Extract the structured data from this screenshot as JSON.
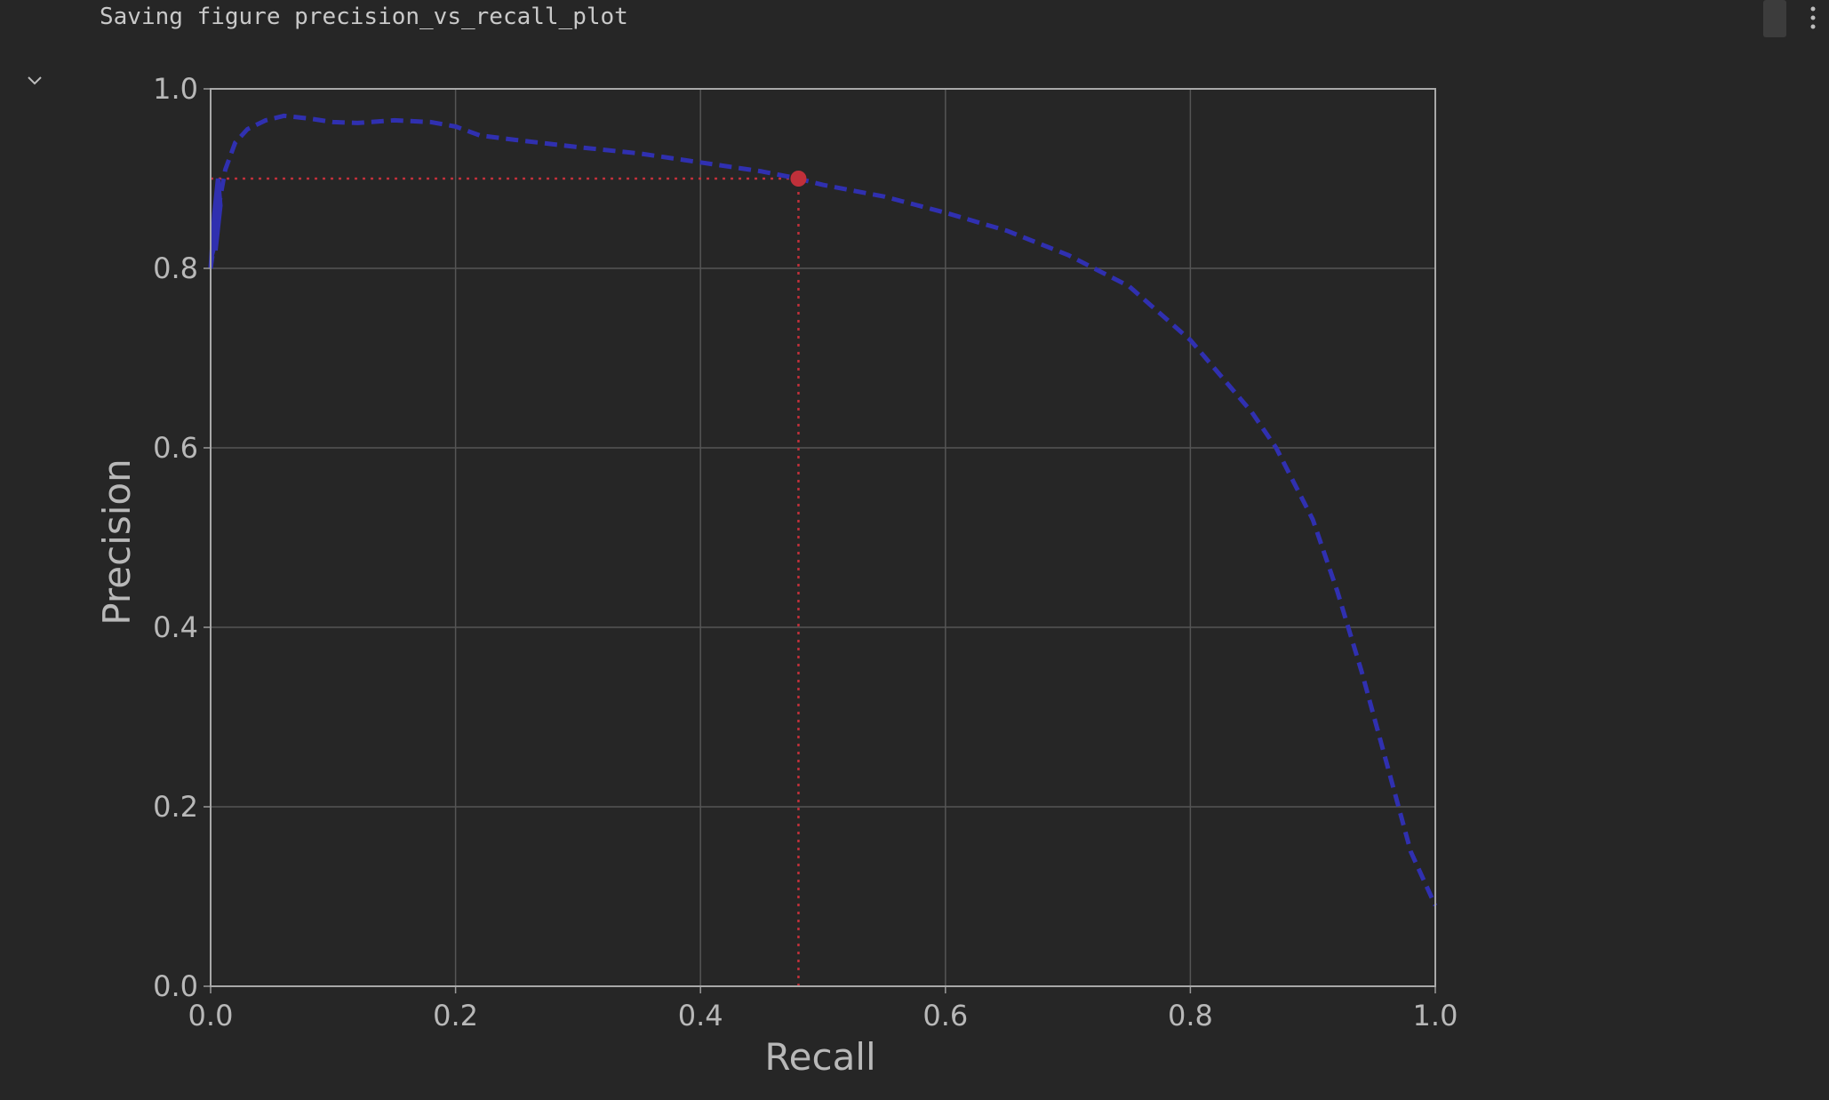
{
  "output": {
    "text": "Saving figure precision_vs_recall_plot"
  },
  "icons": {
    "collapse": "chevron-down-icon",
    "menu": "more-vertical-icon"
  },
  "colors": {
    "background": "#262626",
    "curve": "#3030b0",
    "marker": "#c0303a",
    "grid": "#555555",
    "axis_text": "#b8b8b8"
  },
  "chart_data": {
    "type": "line",
    "title": "",
    "xlabel": "Recall",
    "ylabel": "Precision",
    "xlim": [
      0.0,
      1.0
    ],
    "ylim": [
      0.0,
      1.0
    ],
    "grid": true,
    "xticks": [
      "0.0",
      "0.2",
      "0.4",
      "0.6",
      "0.8",
      "1.0"
    ],
    "yticks": [
      "0.0",
      "0.2",
      "0.4",
      "0.6",
      "0.8",
      "1.0"
    ],
    "series": [
      {
        "style": "dashed",
        "color": "#3030b0",
        "x": [
          0.0,
          0.002,
          0.005,
          0.008,
          0.012,
          0.02,
          0.03,
          0.045,
          0.06,
          0.08,
          0.1,
          0.12,
          0.15,
          0.18,
          0.2,
          0.22,
          0.25,
          0.3,
          0.35,
          0.4,
          0.45,
          0.48,
          0.5,
          0.55,
          0.6,
          0.65,
          0.7,
          0.75,
          0.8,
          0.85,
          0.87,
          0.9,
          0.92,
          0.94,
          0.96,
          0.98,
          1.0
        ],
        "y": [
          0.8,
          0.82,
          0.85,
          0.88,
          0.91,
          0.94,
          0.955,
          0.965,
          0.97,
          0.967,
          0.963,
          0.962,
          0.965,
          0.963,
          0.958,
          0.948,
          0.943,
          0.935,
          0.928,
          0.918,
          0.908,
          0.9,
          0.893,
          0.88,
          0.862,
          0.842,
          0.815,
          0.78,
          0.72,
          0.64,
          0.6,
          0.52,
          0.44,
          0.35,
          0.25,
          0.15,
          0.09
        ]
      }
    ],
    "threshold_point": {
      "x": 0.48,
      "y": 0.9,
      "color": "#c0303a"
    },
    "reference_lines": [
      {
        "orientation": "horizontal",
        "y": 0.9,
        "x_from": 0.0,
        "x_to": 0.48,
        "style": "dotted",
        "color": "#c0303a"
      },
      {
        "orientation": "vertical",
        "x": 0.48,
        "y_from": 0.0,
        "y_to": 0.9,
        "style": "dotted",
        "color": "#c0303a"
      }
    ]
  }
}
